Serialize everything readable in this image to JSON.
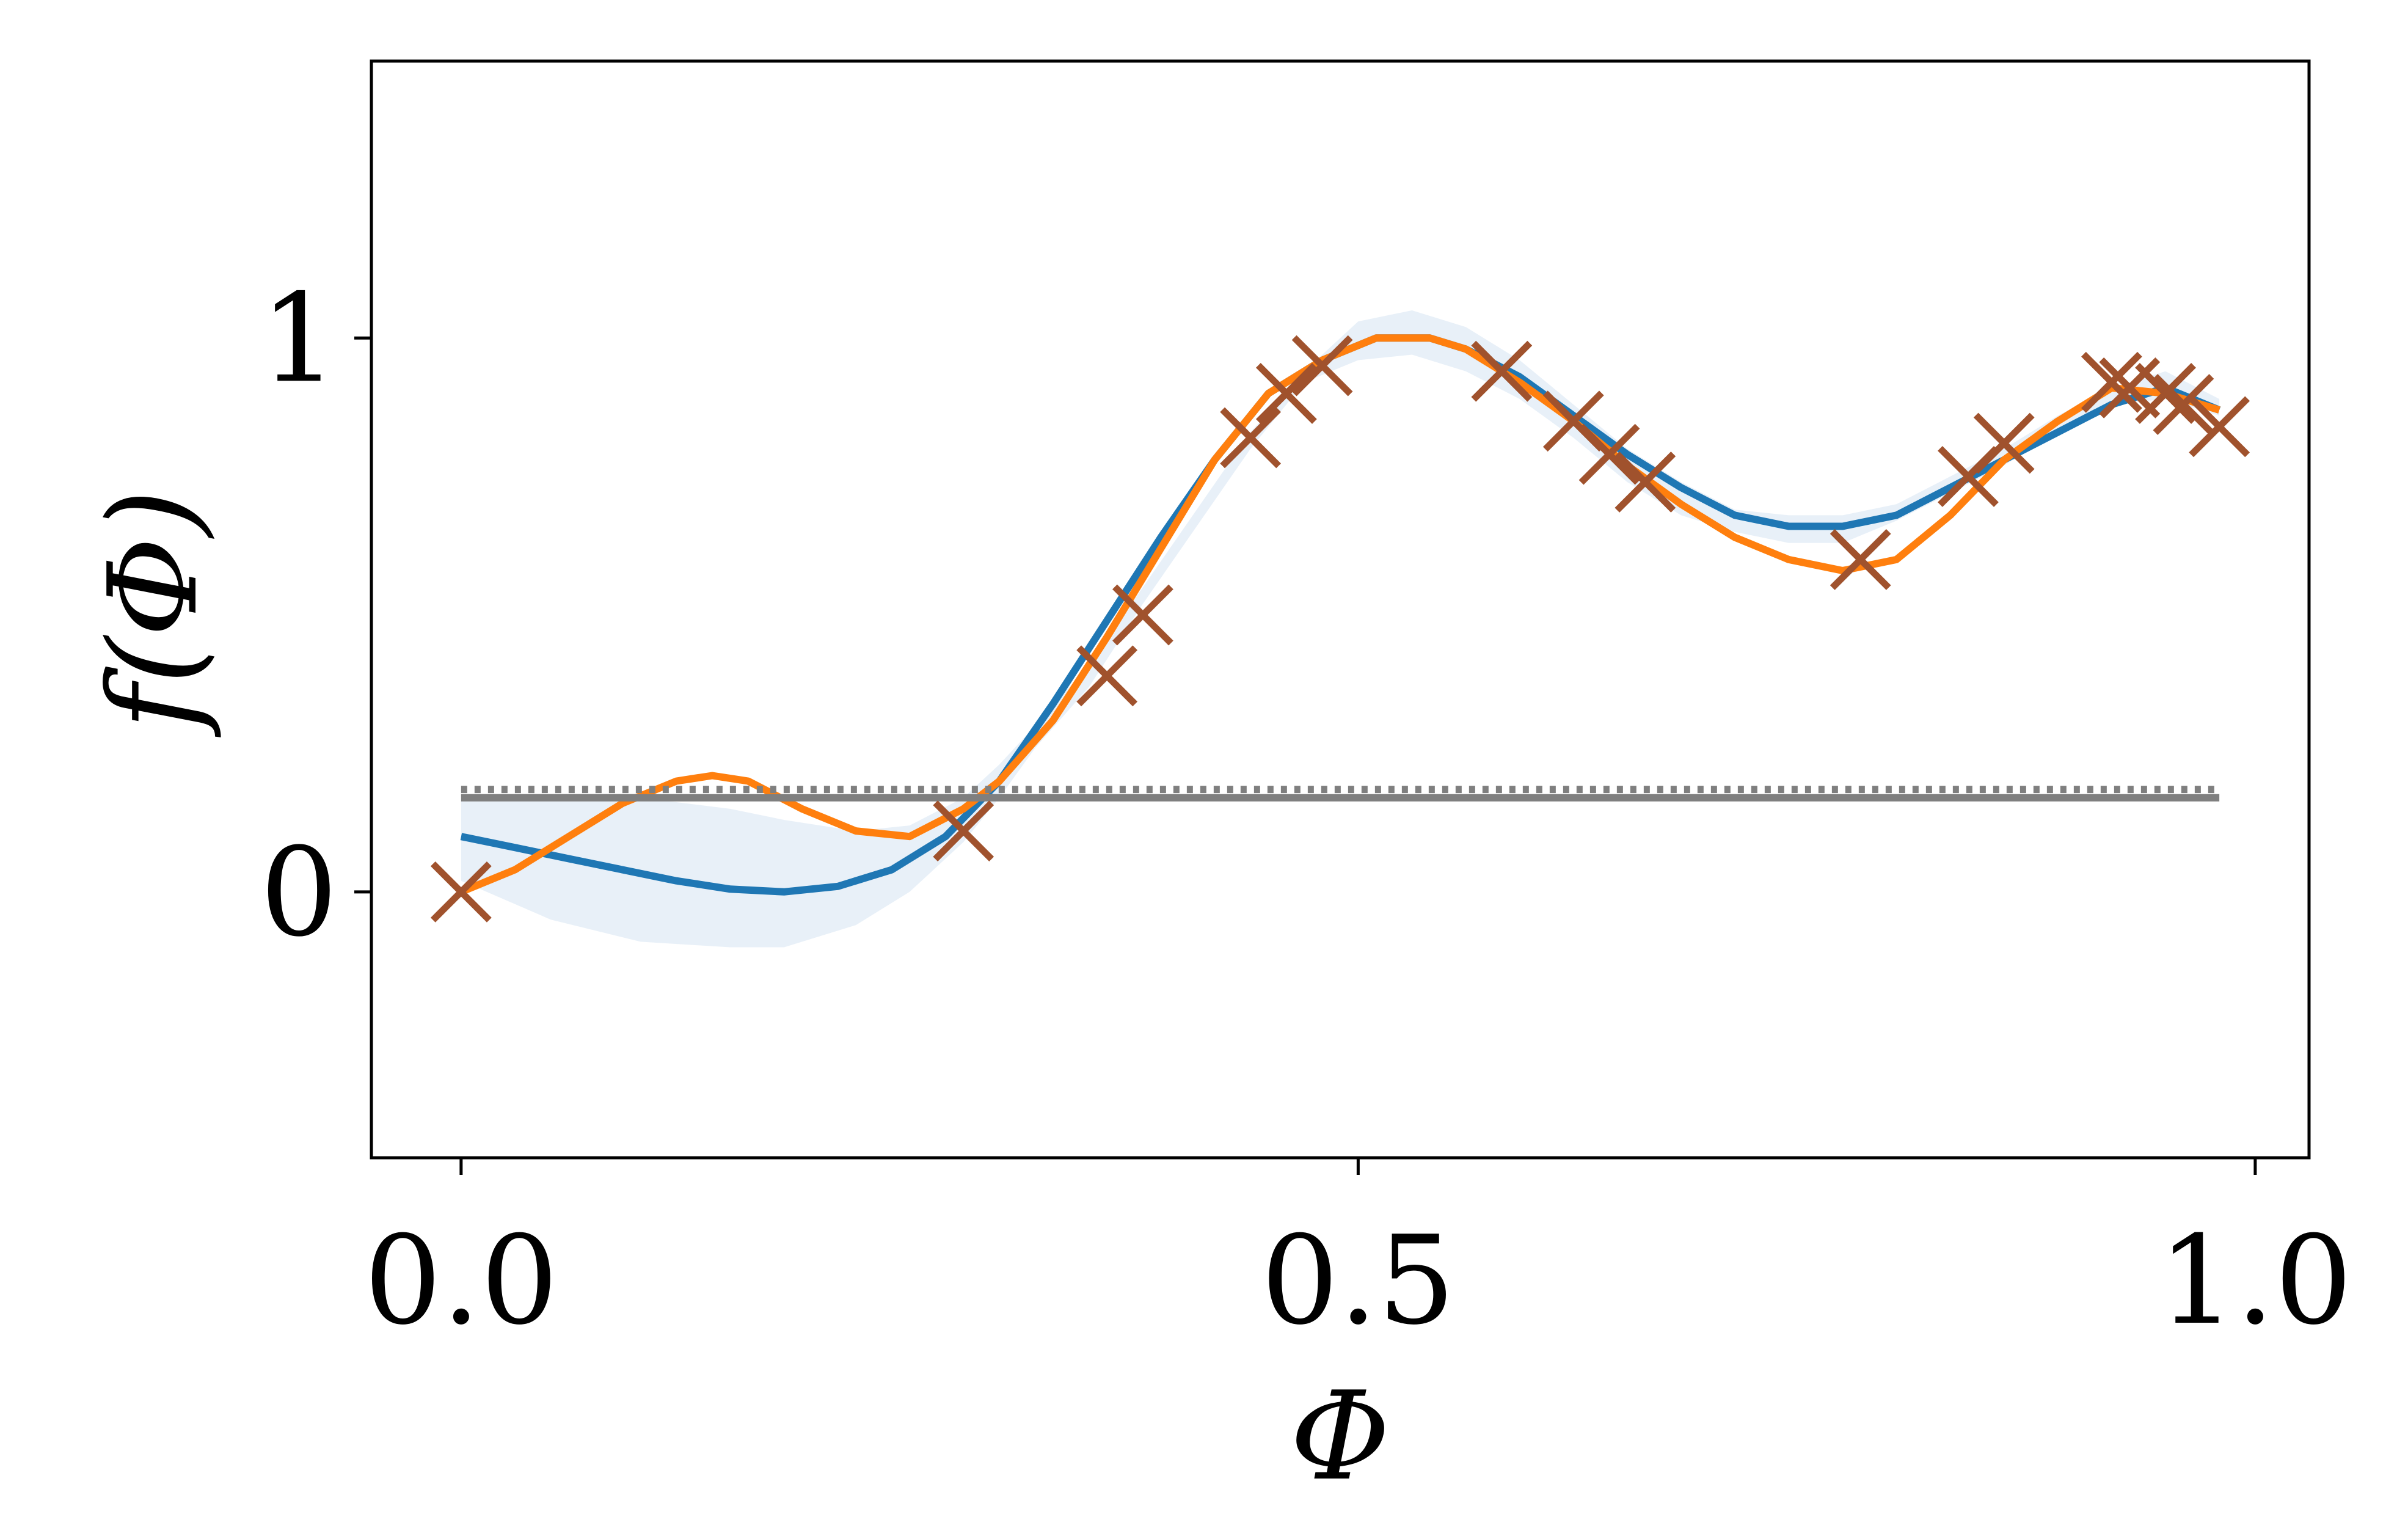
{
  "chart_data": {
    "type": "line",
    "title": "",
    "xlabel": "Φ",
    "ylabel": "f(Φ)",
    "xlim": [
      -0.05,
      1.03
    ],
    "ylim": [
      -0.48,
      1.5
    ],
    "x_ticks": [
      {
        "value": 0.0,
        "label": "0.0"
      },
      {
        "value": 0.5,
        "label": "0.5"
      },
      {
        "value": 1.0,
        "label": "1.0"
      }
    ],
    "y_ticks": [
      {
        "value": 0,
        "label": "0"
      },
      {
        "value": 1,
        "label": "1"
      }
    ],
    "grid": false,
    "legend": "none",
    "series": [
      {
        "kind": "band",
        "color": "#dce8f5",
        "x": [
          0.0,
          0.05,
          0.1,
          0.15,
          0.18,
          0.22,
          0.25,
          0.28,
          0.3,
          0.32,
          0.35,
          0.38,
          0.41,
          0.44,
          0.47,
          0.5,
          0.53,
          0.56,
          0.59,
          0.62,
          0.65,
          0.68,
          0.71,
          0.74,
          0.77,
          0.8,
          0.83,
          0.86,
          0.89,
          0.92,
          0.95,
          0.98
        ],
        "lower": [
          0.02,
          -0.05,
          -0.09,
          -0.1,
          -0.1,
          -0.06,
          0.0,
          0.09,
          0.17,
          0.26,
          0.37,
          0.52,
          0.66,
          0.8,
          0.92,
          0.96,
          0.97,
          0.94,
          0.89,
          0.82,
          0.74,
          0.68,
          0.65,
          0.63,
          0.63,
          0.67,
          0.72,
          0.77,
          0.83,
          0.88,
          0.89,
          0.86
        ],
        "upper": [
          0.17,
          0.17,
          0.17,
          0.15,
          0.13,
          0.11,
          0.12,
          0.17,
          0.23,
          0.3,
          0.41,
          0.55,
          0.69,
          0.83,
          0.94,
          1.03,
          1.05,
          1.02,
          0.96,
          0.88,
          0.8,
          0.74,
          0.69,
          0.68,
          0.68,
          0.7,
          0.75,
          0.8,
          0.86,
          0.91,
          0.94,
          0.89
        ]
      },
      {
        "kind": "line",
        "color": "#1f77b4",
        "x": [
          0.0,
          0.03,
          0.06,
          0.09,
          0.12,
          0.15,
          0.18,
          0.21,
          0.24,
          0.27,
          0.3,
          0.33,
          0.36,
          0.39,
          0.42,
          0.45,
          0.48,
          0.51,
          0.54,
          0.56,
          0.59,
          0.62,
          0.65,
          0.68,
          0.71,
          0.74,
          0.77,
          0.8,
          0.83,
          0.86,
          0.89,
          0.92,
          0.95,
          0.98
        ],
        "y": [
          0.1,
          0.08,
          0.06,
          0.04,
          0.02,
          0.005,
          0.0,
          0.01,
          0.04,
          0.1,
          0.2,
          0.34,
          0.49,
          0.64,
          0.78,
          0.9,
          0.96,
          1.0,
          1.0,
          0.98,
          0.93,
          0.86,
          0.79,
          0.73,
          0.68,
          0.66,
          0.66,
          0.68,
          0.73,
          0.78,
          0.83,
          0.88,
          0.91,
          0.87
        ]
      },
      {
        "kind": "line",
        "color": "#ff7f0e",
        "x": [
          0.0,
          0.03,
          0.06,
          0.09,
          0.12,
          0.14,
          0.16,
          0.19,
          0.22,
          0.25,
          0.28,
          0.3,
          0.33,
          0.36,
          0.39,
          0.42,
          0.45,
          0.48,
          0.51,
          0.54,
          0.56,
          0.59,
          0.62,
          0.65,
          0.68,
          0.71,
          0.74,
          0.77,
          0.8,
          0.83,
          0.86,
          0.89,
          0.92,
          0.95,
          0.98
        ],
        "y": [
          0.0,
          0.04,
          0.1,
          0.16,
          0.2,
          0.21,
          0.2,
          0.15,
          0.11,
          0.1,
          0.15,
          0.2,
          0.31,
          0.46,
          0.62,
          0.78,
          0.9,
          0.96,
          1.0,
          1.0,
          0.98,
          0.92,
          0.85,
          0.77,
          0.7,
          0.64,
          0.6,
          0.58,
          0.6,
          0.68,
          0.78,
          0.85,
          0.91,
          0.9,
          0.87
        ]
      },
      {
        "kind": "hline",
        "color": "#7f7f7f",
        "style": "solid",
        "y": 0.17,
        "x": [
          0.0,
          0.98
        ]
      },
      {
        "kind": "hline",
        "color": "#7f7f7f",
        "style": "dotted",
        "y": 0.185,
        "x": [
          0.0,
          0.98
        ]
      },
      {
        "kind": "scatter",
        "marker": "x",
        "color": "#a0522d",
        "points": [
          {
            "x": 0.0,
            "y": 0.0
          },
          {
            "x": 0.28,
            "y": 0.11
          },
          {
            "x": 0.36,
            "y": 0.39
          },
          {
            "x": 0.38,
            "y": 0.5
          },
          {
            "x": 0.44,
            "y": 0.82
          },
          {
            "x": 0.46,
            "y": 0.9
          },
          {
            "x": 0.48,
            "y": 0.95
          },
          {
            "x": 0.58,
            "y": 0.94
          },
          {
            "x": 0.62,
            "y": 0.85
          },
          {
            "x": 0.64,
            "y": 0.79
          },
          {
            "x": 0.66,
            "y": 0.74
          },
          {
            "x": 0.78,
            "y": 0.6
          },
          {
            "x": 0.84,
            "y": 0.75
          },
          {
            "x": 0.86,
            "y": 0.81
          },
          {
            "x": 0.92,
            "y": 0.92
          },
          {
            "x": 0.93,
            "y": 0.91
          },
          {
            "x": 0.95,
            "y": 0.9
          },
          {
            "x": 0.96,
            "y": 0.88
          },
          {
            "x": 0.98,
            "y": 0.84
          }
        ]
      }
    ]
  }
}
